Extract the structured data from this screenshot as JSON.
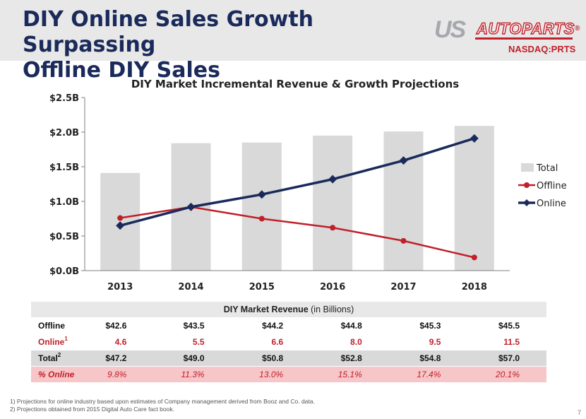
{
  "header": {
    "title_line1": "DIY Online Sales Growth Surpassing",
    "title_line2": "Offline DIY Sales",
    "logo_us": "US",
    "logo_autoparts": "AUTOPARTS",
    "logo_registered": "®",
    "ticker": "NASDAQ:PRTS"
  },
  "chart_data": {
    "type": "bar",
    "title": "DIY Market Incremental Revenue & Growth Projections",
    "categories": [
      "2013",
      "2014",
      "2015",
      "2016",
      "2017",
      "2018"
    ],
    "y_tick_labels": [
      "$0.0B",
      "$0.5B",
      "$1.0B",
      "$1.5B",
      "$2.0B",
      "$2.5B"
    ],
    "y_ticks": [
      0,
      0.5,
      1.0,
      1.5,
      2.0,
      2.5
    ],
    "ylim": [
      0,
      2.5
    ],
    "legend_position": "right",
    "series": [
      {
        "name": "Total",
        "kind": "bar",
        "color": "#d9d9d9",
        "values": [
          1.41,
          1.84,
          1.85,
          1.95,
          2.01,
          2.09
        ]
      },
      {
        "name": "Offline",
        "kind": "line",
        "marker": "circle",
        "color": "#c0202a",
        "values": [
          0.76,
          0.92,
          0.75,
          0.62,
          0.43,
          0.19
        ]
      },
      {
        "name": "Online",
        "kind": "line",
        "marker": "diamond",
        "color": "#1a2a5a",
        "values": [
          0.65,
          0.92,
          1.1,
          1.32,
          1.59,
          1.91
        ]
      }
    ]
  },
  "table": {
    "header_bold": "DIY Market Revenue",
    "header_rest": " (in Billions)",
    "rows": {
      "offline": {
        "label": "Offline",
        "values": [
          "$42.6",
          "$43.5",
          "$44.2",
          "$44.8",
          "$45.3",
          "$45.5"
        ]
      },
      "online": {
        "label": "Online",
        "sup": "1",
        "values": [
          "4.6",
          "5.5",
          "6.6",
          "8.0",
          "9.5",
          "11.5"
        ]
      },
      "total": {
        "label": "Total",
        "sup": "2",
        "values": [
          "$47.2",
          "$49.0",
          "$50.8",
          "$52.8",
          "$54.8",
          "$57.0"
        ]
      },
      "pct": {
        "label": "% Online",
        "values": [
          "9.8%",
          "11.3%",
          "13.0%",
          "15.1%",
          "17.4%",
          "20.1%"
        ]
      }
    }
  },
  "footnotes": [
    "1)   Projections for online industry based upon estimates of Company management derived from Booz and Co. data.",
    "2)   Projections obtained from 2015 Digital Auto Care fact book."
  ],
  "page_number": "7"
}
